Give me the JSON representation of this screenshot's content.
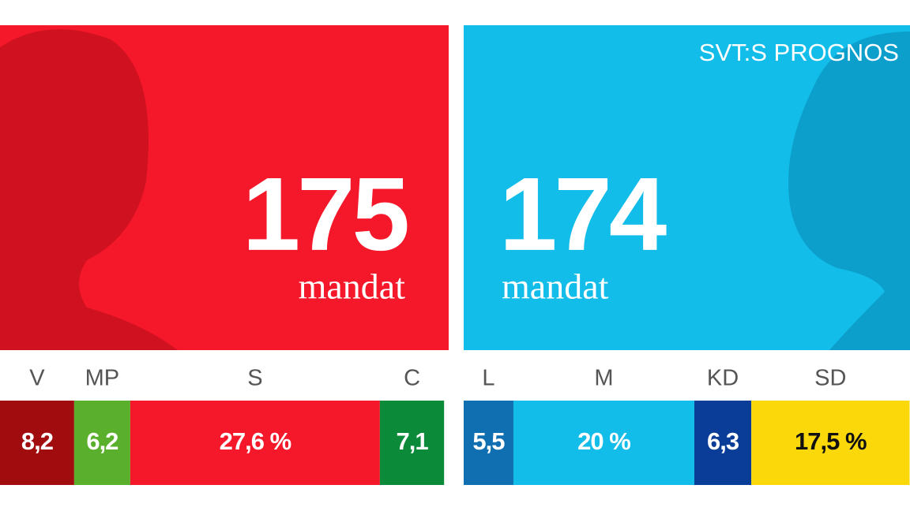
{
  "badge": "SVT:S PROGNOS",
  "blocs": [
    {
      "seats": 175,
      "seats_label": "mandat",
      "color": "#f5172a",
      "parties": [
        {
          "name": "V",
          "value": 8.2,
          "value_label": "8,2",
          "color": "#a10d0f",
          "text_color": "#ffffff"
        },
        {
          "name": "MP",
          "value": 6.2,
          "value_label": "6,2",
          "color": "#5ab02d",
          "text_color": "#ffffff"
        },
        {
          "name": "S",
          "value": 27.6,
          "value_label": "27,6 %",
          "color": "#f5172a",
          "text_color": "#ffffff"
        },
        {
          "name": "C",
          "value": 7.1,
          "value_label": "7,1",
          "color": "#0b8a3a",
          "text_color": "#ffffff"
        }
      ]
    },
    {
      "seats": 174,
      "seats_label": "mandat",
      "color": "#12bde9",
      "parties": [
        {
          "name": "L",
          "value": 5.5,
          "value_label": "5,5",
          "color": "#0f6fb0",
          "text_color": "#ffffff"
        },
        {
          "name": "M",
          "value": 20,
          "value_label": "20 %",
          "color": "#12bde9",
          "text_color": "#ffffff"
        },
        {
          "name": "KD",
          "value": 6.3,
          "value_label": "6,3",
          "color": "#0a3d97",
          "text_color": "#ffffff"
        },
        {
          "name": "SD",
          "value": 17.5,
          "value_label": "17,5 %",
          "color": "#fbd80a",
          "text_color": "#111111"
        }
      ]
    }
  ]
}
